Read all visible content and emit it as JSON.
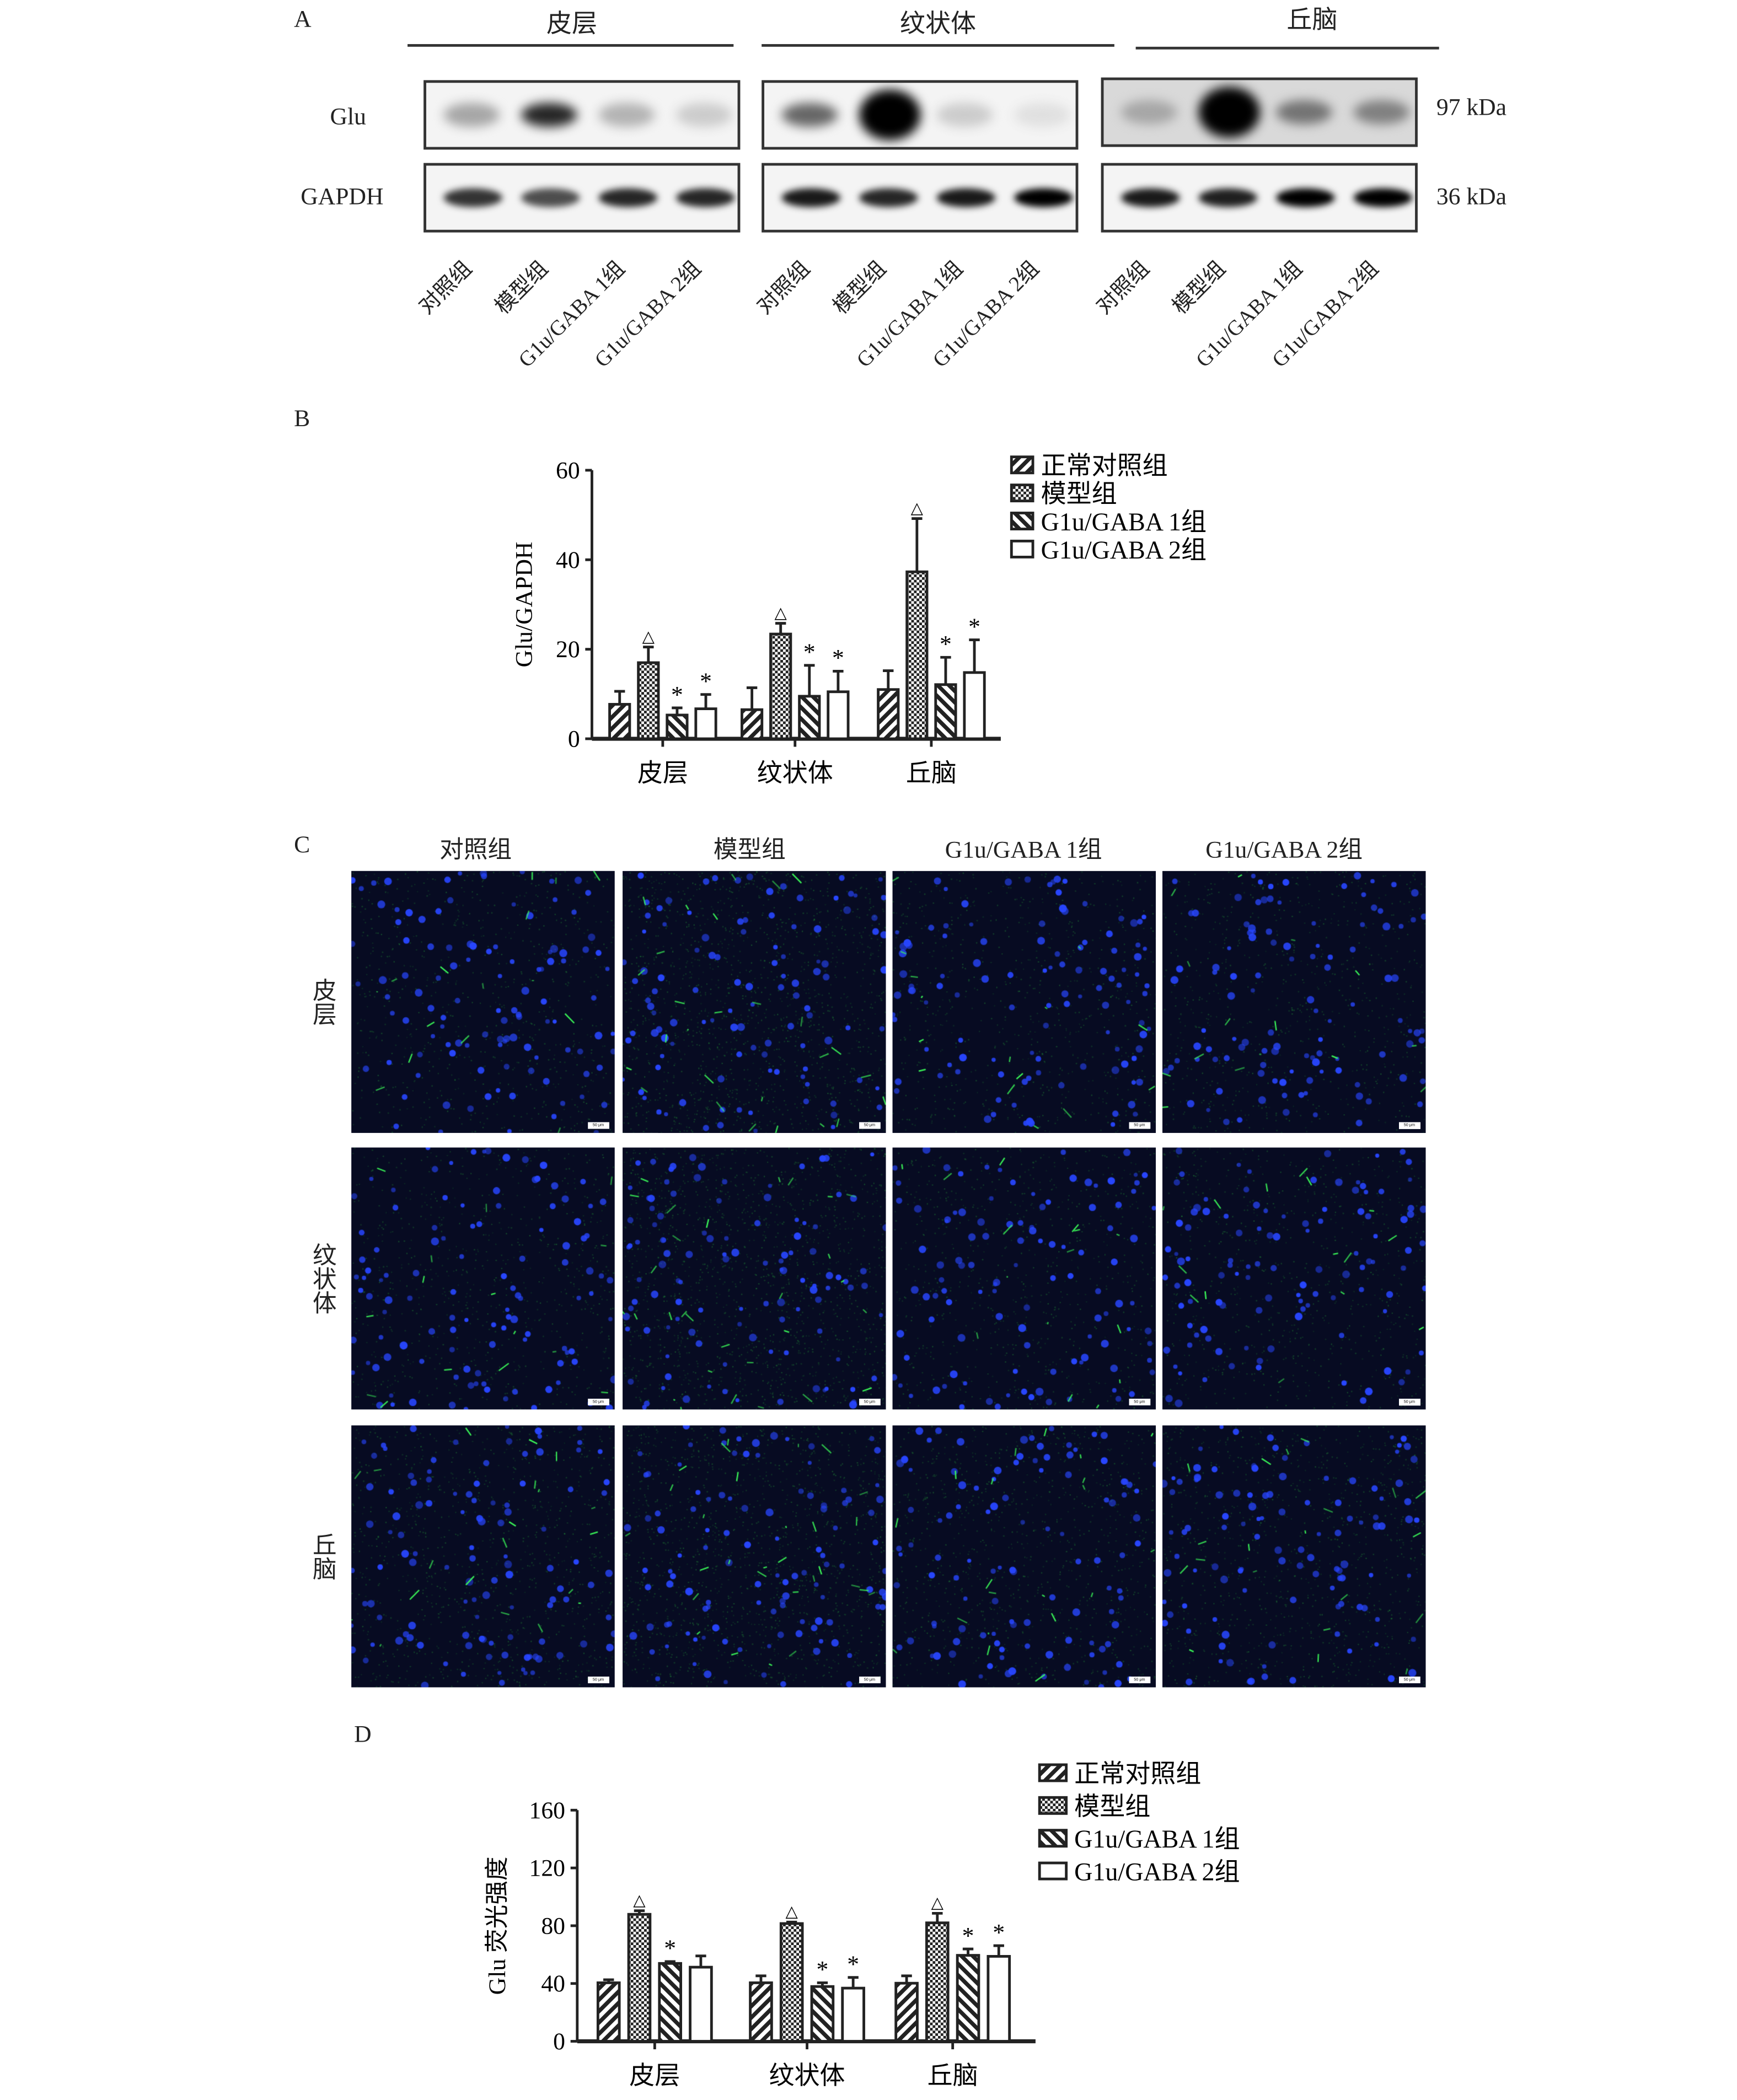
{
  "panel_a": {
    "label": "A",
    "regions": [
      "皮层",
      "纹状体",
      "丘脑"
    ],
    "rows": [
      {
        "label": "Glu",
        "size": "97 kDa"
      },
      {
        "label": "GAPDH",
        "size": "36 kDa"
      }
    ],
    "lanes": [
      "对照组",
      "模型组",
      "G1u/GABA 1组",
      "G1u/GABA 2组"
    ],
    "band_intensity": {
      "Glu": [
        [
          0.35,
          0.85,
          0.3,
          0.2
        ],
        [
          0.6,
          1.0,
          0.2,
          0.12
        ],
        [
          0.35,
          1.0,
          0.55,
          0.5
        ]
      ],
      "GAPDH": [
        [
          0.8,
          0.7,
          0.85,
          0.85
        ],
        [
          0.9,
          0.85,
          0.9,
          1.0
        ],
        [
          0.9,
          0.88,
          1.0,
          1.0
        ]
      ]
    }
  },
  "panel_b": {
    "label": "B"
  },
  "panel_c": {
    "label": "C",
    "columns": [
      "对照组",
      "模型组",
      "G1u/GABA 1组",
      "G1u/GABA 2组"
    ],
    "rows": [
      "皮层",
      "纹状体",
      "丘脑"
    ],
    "scale_bar": "50 μm",
    "colors": {
      "nuclei": "#2a3cff",
      "glu": "#3cff5a",
      "background": "#070b22"
    }
  },
  "panel_d": {
    "label": "D"
  },
  "chart_data": [
    {
      "type": "bar",
      "categories": [
        "皮层",
        "纹状体",
        "丘脑"
      ],
      "ylabel": "Glu/GAPDH",
      "ylim": [
        0,
        60
      ],
      "yticks": [
        0,
        20,
        40,
        60
      ],
      "legend": "top-right",
      "series": [
        {
          "name": "正常对照组",
          "pattern": "diag-right",
          "values": [
            7.7,
            6.5,
            11.0
          ],
          "errors": [
            2.9,
            4.9,
            4.2
          ],
          "marks": [
            "",
            "",
            ""
          ]
        },
        {
          "name": "模型组",
          "pattern": "checker",
          "values": [
            17.0,
            23.4,
            37.3
          ],
          "errors": [
            3.5,
            2.4,
            11.9
          ],
          "marks": [
            "△",
            "△",
            "△"
          ]
        },
        {
          "name": "G1u/GABA 1组",
          "pattern": "diag-left",
          "values": [
            5.3,
            9.5,
            12.1
          ],
          "errors": [
            1.6,
            6.9,
            6.1
          ],
          "marks": [
            "*",
            "*",
            "*"
          ]
        },
        {
          "name": "G1u/GABA 2组",
          "pattern": "open",
          "values": [
            6.7,
            10.5,
            14.8
          ],
          "errors": [
            3.2,
            4.6,
            7.3
          ],
          "marks": [
            "*",
            "*",
            "*"
          ]
        }
      ]
    },
    {
      "type": "bar",
      "categories": [
        "皮层",
        "纹状体",
        "丘脑"
      ],
      "ylabel": "Glu 荧光强度",
      "ylim": [
        0,
        160
      ],
      "yticks": [
        0,
        40,
        80,
        120,
        160
      ],
      "legend": "top-right",
      "series": [
        {
          "name": "正常对照组",
          "pattern": "diag-right",
          "values": [
            40.5,
            40.5,
            40.2
          ],
          "errors": [
            2.1,
            4.8,
            5.1
          ],
          "marks": [
            "",
            "",
            ""
          ]
        },
        {
          "name": "模型组",
          "pattern": "checker",
          "values": [
            87.9,
            81.5,
            82.0
          ],
          "errors": [
            2.5,
            1.0,
            6.6
          ],
          "marks": [
            "△",
            "△",
            "△"
          ]
        },
        {
          "name": "G1u/GABA 1组",
          "pattern": "diag-left",
          "values": [
            53.9,
            37.9,
            59.5
          ],
          "errors": [
            1.3,
            2.6,
            4.4
          ],
          "marks": [
            "*",
            "*",
            "*"
          ]
        },
        {
          "name": "G1u/GABA 2组",
          "pattern": "open",
          "values": [
            51.3,
            36.8,
            58.8
          ],
          "errors": [
            7.8,
            7.4,
            7.4
          ],
          "marks": [
            "",
            "*",
            "*"
          ]
        }
      ]
    }
  ]
}
